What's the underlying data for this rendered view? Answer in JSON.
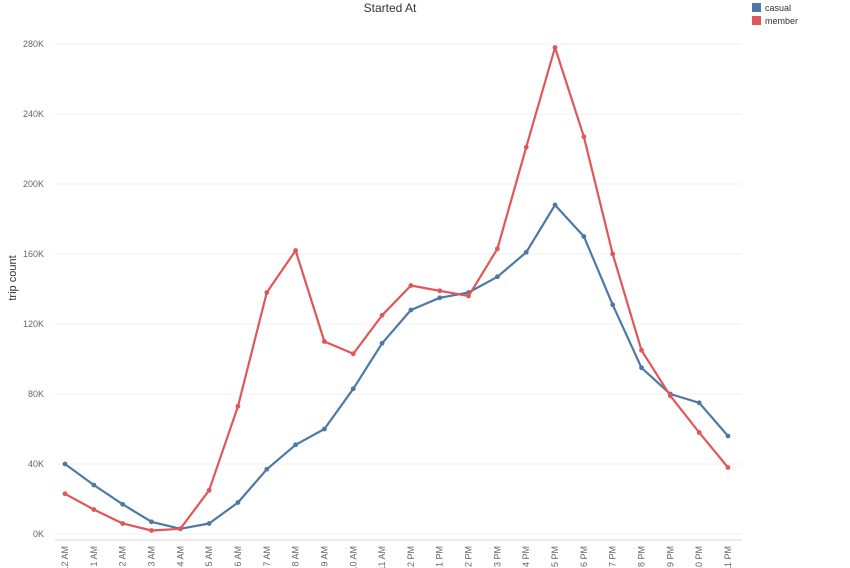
{
  "chart_data": {
    "type": "line",
    "title": "Started At",
    "xlabel": "",
    "ylabel": "trip count",
    "categories": [
      "12 AM",
      "1 AM",
      "2 AM",
      "3 AM",
      "4 AM",
      "5 AM",
      "6 AM",
      "7 AM",
      "8 AM",
      "9 AM",
      "10 AM",
      "11 AM",
      "12 PM",
      "1 PM",
      "2 PM",
      "3 PM",
      "4 PM",
      "5 PM",
      "6 PM",
      "7 PM",
      "8 PM",
      "9 PM",
      "10 PM",
      "11 PM"
    ],
    "y_ticks": [
      {
        "value": 0,
        "label": "0K"
      },
      {
        "value": 40000,
        "label": "40K"
      },
      {
        "value": 80000,
        "label": "80K"
      },
      {
        "value": 120000,
        "label": "120K"
      },
      {
        "value": 160000,
        "label": "160K"
      },
      {
        "value": 200000,
        "label": "200K"
      },
      {
        "value": 240000,
        "label": "240K"
      },
      {
        "value": 280000,
        "label": "280K"
      }
    ],
    "ylim": [
      0,
      290000
    ],
    "grid": true,
    "legend_position": "top-right",
    "series": [
      {
        "name": "casual",
        "color": "#4e79a7",
        "values": [
          40000,
          28000,
          17000,
          7000,
          3000,
          6000,
          18000,
          37000,
          51000,
          60000,
          83000,
          109000,
          128000,
          135000,
          138000,
          147000,
          161000,
          188000,
          170000,
          131000,
          95000,
          80000,
          75000,
          56000
        ]
      },
      {
        "name": "member",
        "color": "#e15759",
        "values": [
          23000,
          14000,
          6000,
          2000,
          3000,
          25000,
          73000,
          138000,
          162000,
          110000,
          103000,
          125000,
          142000,
          139000,
          136000,
          163000,
          221000,
          278000,
          227000,
          160000,
          105000,
          79000,
          58000,
          38000
        ]
      }
    ]
  }
}
